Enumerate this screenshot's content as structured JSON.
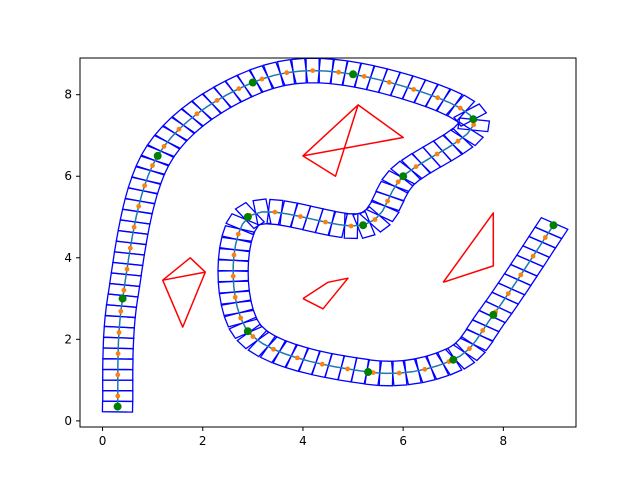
{
  "chart_data": {
    "type": "scatter",
    "title": "",
    "xlabel": "",
    "ylabel": "",
    "xlim": [
      -0.45,
      9.45
    ],
    "ylim": [
      -0.15,
      8.9
    ],
    "xticks": [
      0,
      2,
      4,
      6,
      8
    ],
    "yticks": [
      0,
      2,
      4,
      6,
      8
    ],
    "tick_labels_x": [
      "0",
      "2",
      "4",
      "6",
      "8"
    ],
    "tick_labels_y": [
      "0",
      "2",
      "4",
      "6",
      "8"
    ],
    "grid": false,
    "legend": "none",
    "colors": {
      "path_line": "#1f77b4",
      "path_points": "#ff7f0e",
      "waypoints": "#008000",
      "boxes": "#0000ff",
      "obstacles": "#ff0000"
    },
    "box_width": 0.6,
    "waypoints": [
      [
        0.3,
        0.35
      ],
      [
        0.4,
        3.0
      ],
      [
        1.1,
        6.5
      ],
      [
        3.0,
        8.3
      ],
      [
        5.0,
        8.5
      ],
      [
        7.4,
        7.4
      ],
      [
        6.0,
        6.0
      ],
      [
        5.2,
        4.8
      ],
      [
        2.9,
        5.0
      ],
      [
        2.9,
        2.2
      ],
      [
        5.3,
        1.2
      ],
      [
        7.0,
        1.5
      ],
      [
        7.8,
        2.6
      ],
      [
        9.0,
        4.8
      ]
    ],
    "obstacles": [
      [
        [
          4.0,
          6.5
        ],
        [
          5.1,
          7.75
        ],
        [
          6.0,
          6.95
        ],
        [
          4.0,
          6.5
        ],
        [
          4.65,
          6.0
        ],
        [
          5.1,
          7.75
        ]
      ],
      [
        [
          1.2,
          3.45
        ],
        [
          2.05,
          3.65
        ],
        [
          1.6,
          2.3
        ],
        [
          1.2,
          3.45
        ],
        [
          1.75,
          4.0
        ],
        [
          2.05,
          3.65
        ]
      ],
      [
        [
          4.0,
          3.0
        ],
        [
          4.5,
          3.4
        ],
        [
          4.9,
          3.5
        ],
        [
          4.4,
          2.75
        ],
        [
          4.0,
          3.0
        ]
      ],
      [
        [
          6.8,
          3.4
        ],
        [
          7.8,
          5.1
        ],
        [
          7.8,
          3.8
        ],
        [
          6.8,
          3.4
        ]
      ]
    ]
  }
}
